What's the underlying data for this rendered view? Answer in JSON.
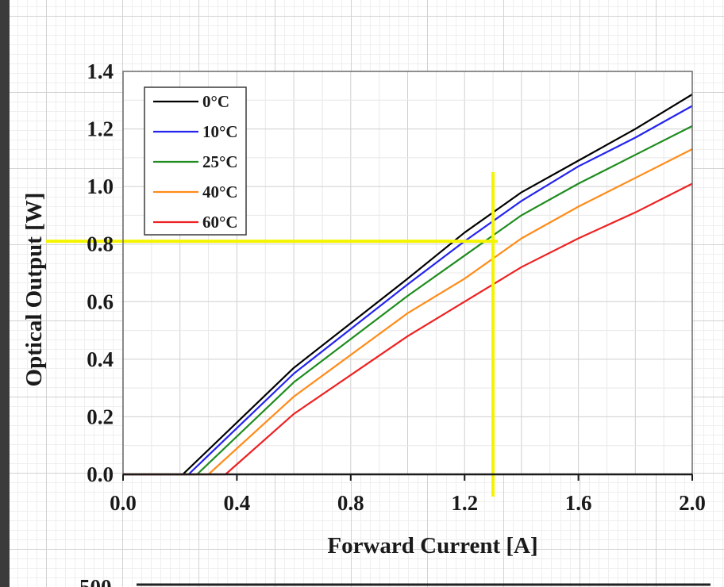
{
  "chart_data": {
    "type": "line",
    "title": "",
    "xlabel": "Forward Current [A]",
    "ylabel": "Optical Output [W]",
    "xlim": [
      0,
      2.0
    ],
    "ylim": [
      0,
      1.4
    ],
    "xticks": [
      "0.0",
      "0.4",
      "0.8",
      "1.2",
      "1.6",
      "2.0"
    ],
    "yticks": [
      "0.0",
      "0.2",
      "0.4",
      "0.6",
      "0.8",
      "1.0",
      "1.2",
      "1.4"
    ],
    "grid": true,
    "legend_position": "top-left",
    "series": [
      {
        "name": "0°C",
        "color": "#000000",
        "x": [
          0,
          0.21,
          0.6,
          1.0,
          1.2,
          1.4,
          1.6,
          1.8,
          2.0
        ],
        "y": [
          0,
          0,
          0.37,
          0.68,
          0.84,
          0.98,
          1.09,
          1.2,
          1.32
        ]
      },
      {
        "name": "10°C",
        "color": "#2424ee",
        "x": [
          0,
          0.23,
          0.6,
          1.0,
          1.2,
          1.4,
          1.6,
          1.8,
          2.0
        ],
        "y": [
          0,
          0,
          0.35,
          0.66,
          0.81,
          0.95,
          1.07,
          1.17,
          1.28
        ]
      },
      {
        "name": "25°C",
        "color": "#1e8c1e",
        "x": [
          0,
          0.26,
          0.6,
          1.0,
          1.2,
          1.4,
          1.6,
          1.8,
          2.0
        ],
        "y": [
          0,
          0,
          0.32,
          0.62,
          0.76,
          0.9,
          1.01,
          1.11,
          1.21
        ]
      },
      {
        "name": "40°C",
        "color": "#ff8c19",
        "x": [
          0,
          0.3,
          0.6,
          1.0,
          1.2,
          1.4,
          1.6,
          1.8,
          2.0
        ],
        "y": [
          0,
          0,
          0.27,
          0.56,
          0.68,
          0.82,
          0.93,
          1.03,
          1.13
        ]
      },
      {
        "name": "60°C",
        "color": "#ee2222",
        "x": [
          0,
          0.36,
          0.6,
          1.0,
          1.2,
          1.4,
          1.6,
          1.8,
          2.0
        ],
        "y": [
          0,
          0,
          0.21,
          0.48,
          0.6,
          0.72,
          0.82,
          0.91,
          1.01
        ]
      }
    ],
    "annotations": [
      {
        "type": "hline",
        "y": 0.81,
        "color": "#f4f400"
      },
      {
        "type": "vline",
        "x": 1.3,
        "color": "#f4f400"
      }
    ],
    "partial_next_chart": {
      "tick_label": "500"
    }
  }
}
